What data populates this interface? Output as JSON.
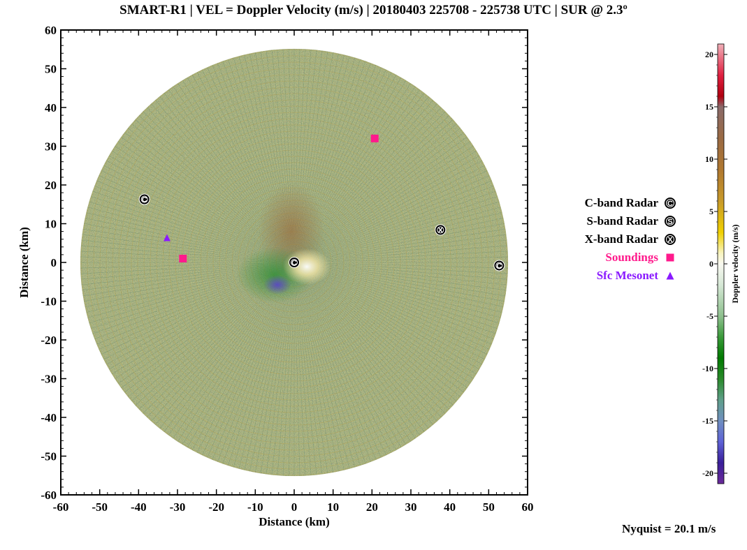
{
  "title": "SMART-R1 | VEL = Doppler Velocity (m/s) | 20180403 225708 - 225738 UTC | SUR @ 2.3º",
  "chart_data": {
    "type": "heatmap",
    "subtype": "ppi-radar",
    "title": "SMART-R1 | VEL = Doppler Velocity (m/s) | 20180403 225708 - 225738 UTC | SUR @ 2.3º",
    "xlabel": "Distance (km)",
    "ylabel": "Distance (km)",
    "xlim": [
      -60,
      60
    ],
    "ylim": [
      -60,
      60
    ],
    "x_ticks": [
      "-60",
      "-50",
      "-40",
      "-30",
      "-20",
      "-10",
      "0",
      "10",
      "20",
      "30",
      "40",
      "50",
      "60"
    ],
    "y_ticks": [
      "60",
      "50",
      "40",
      "30",
      "20",
      "10",
      "0",
      "-10",
      "-20",
      "-30",
      "-40",
      "-50",
      "-60"
    ],
    "max_range_km": 55,
    "markers": [
      {
        "series": "C-band Radar",
        "symbol": "C",
        "x": -38.5,
        "y": 16.3
      },
      {
        "series": "C-band Radar",
        "symbol": "C",
        "x": 0,
        "y": 0
      },
      {
        "series": "C-band Radar",
        "symbol": "C",
        "x": 52.7,
        "y": -0.8
      },
      {
        "series": "X-band Radar",
        "symbol": "X",
        "x": 37.6,
        "y": 8.4
      },
      {
        "series": "Soundings",
        "symbol": "square",
        "x": 20.7,
        "y": 32
      },
      {
        "series": "Soundings",
        "symbol": "square",
        "x": -28.6,
        "y": 1
      },
      {
        "series": "Sfc Mesonet",
        "symbol": "triangle",
        "x": -32.7,
        "y": 6.4
      }
    ],
    "legend": {
      "placement": "right",
      "entries": [
        {
          "label": "C-band Radar",
          "symbol": "C",
          "color": "#000000"
        },
        {
          "label": "S-band Radar",
          "symbol": "S",
          "color": "#000000"
        },
        {
          "label": "X-band Radar",
          "symbol": "X",
          "color": "#000000"
        },
        {
          "label": "Soundings",
          "symbol": "square",
          "color": "#ff1a8c"
        },
        {
          "label": "Sfc Mesonet",
          "symbol": "triangle",
          "color": "#8a1aff"
        }
      ]
    },
    "colorbar": {
      "label": "Doppler velocity (m/s)",
      "range": [
        -21,
        21
      ],
      "ticks": [
        "20",
        "15",
        "10",
        "5",
        "0",
        "-5",
        "-10",
        "-15",
        "-20"
      ],
      "stops": [
        {
          "v": -21,
          "color": "#6a2a9a"
        },
        {
          "v": -19,
          "color": "#3a1f9a"
        },
        {
          "v": -17,
          "color": "#5e62d6"
        },
        {
          "v": -15,
          "color": "#6f8fc0"
        },
        {
          "v": -13,
          "color": "#5f9f8a"
        },
        {
          "v": -11,
          "color": "#2a8a2a"
        },
        {
          "v": -9,
          "color": "#007a00"
        },
        {
          "v": -7,
          "color": "#3a9a3a"
        },
        {
          "v": -5,
          "color": "#8ec08e"
        },
        {
          "v": -2,
          "color": "#d6e8d6"
        },
        {
          "v": 0,
          "color": "#f8f8f0"
        },
        {
          "v": 1,
          "color": "#f8f4c0"
        },
        {
          "v": 3,
          "color": "#f0d000"
        },
        {
          "v": 6,
          "color": "#c89a2a"
        },
        {
          "v": 9,
          "color": "#b07830"
        },
        {
          "v": 12,
          "color": "#9a6a44"
        },
        {
          "v": 15,
          "color": "#8a6a6a"
        },
        {
          "v": 16,
          "color": "#b00010"
        },
        {
          "v": 18,
          "color": "#e02040"
        },
        {
          "v": 21,
          "color": "#f0b0b8"
        }
      ]
    }
  },
  "nyquist_text": "Nyquist = 20.1 m/s",
  "colors": {
    "soundings": "#ff1a8c",
    "mesonet": "#8a1aff",
    "radar_marker": "#000000"
  }
}
